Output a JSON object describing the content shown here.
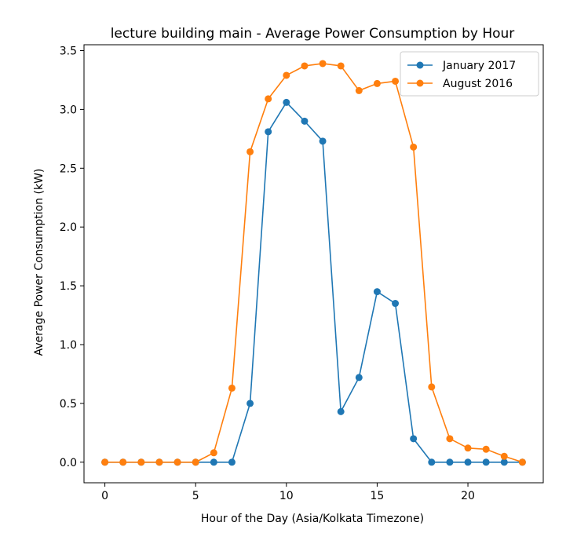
{
  "chart_data": {
    "type": "line",
    "title": "lecture building main - Average Power Consumption by Hour",
    "xlabel": "Hour of the Day (Asia/Kolkata Timezone)",
    "ylabel": "Average Power Consumption (kW)",
    "xlim": [
      -1.15,
      24.15
    ],
    "ylim": [
      -0.175,
      3.55
    ],
    "xticks": [
      0,
      5,
      10,
      15,
      20
    ],
    "yticks": [
      0.0,
      0.5,
      1.0,
      1.5,
      2.0,
      2.5,
      3.0,
      3.5
    ],
    "ytick_labels": [
      "0.0",
      "0.5",
      "1.0",
      "1.5",
      "2.0",
      "2.5",
      "3.0",
      "3.5"
    ],
    "grid": false,
    "legend_position": "top-right",
    "x": [
      0,
      1,
      2,
      3,
      4,
      5,
      6,
      7,
      8,
      9,
      10,
      11,
      12,
      13,
      14,
      15,
      16,
      17,
      18,
      19,
      20,
      21,
      22,
      23
    ],
    "series": [
      {
        "name": "January 2017",
        "color": "#1f77b4",
        "values": [
          0,
          0,
          0,
          0,
          0,
          0,
          0,
          0,
          0.5,
          2.81,
          3.06,
          2.9,
          2.73,
          0.43,
          0.72,
          1.45,
          1.35,
          0.2,
          0,
          0,
          0,
          0,
          0,
          0
        ]
      },
      {
        "name": "August 2016",
        "color": "#ff7f0e",
        "values": [
          0,
          0,
          0,
          0,
          0,
          0,
          0.08,
          0.63,
          2.64,
          3.09,
          3.29,
          3.37,
          3.39,
          3.37,
          3.16,
          3.22,
          3.24,
          2.68,
          0.64,
          0.2,
          0.12,
          0.11,
          0.05,
          0
        ]
      }
    ]
  }
}
